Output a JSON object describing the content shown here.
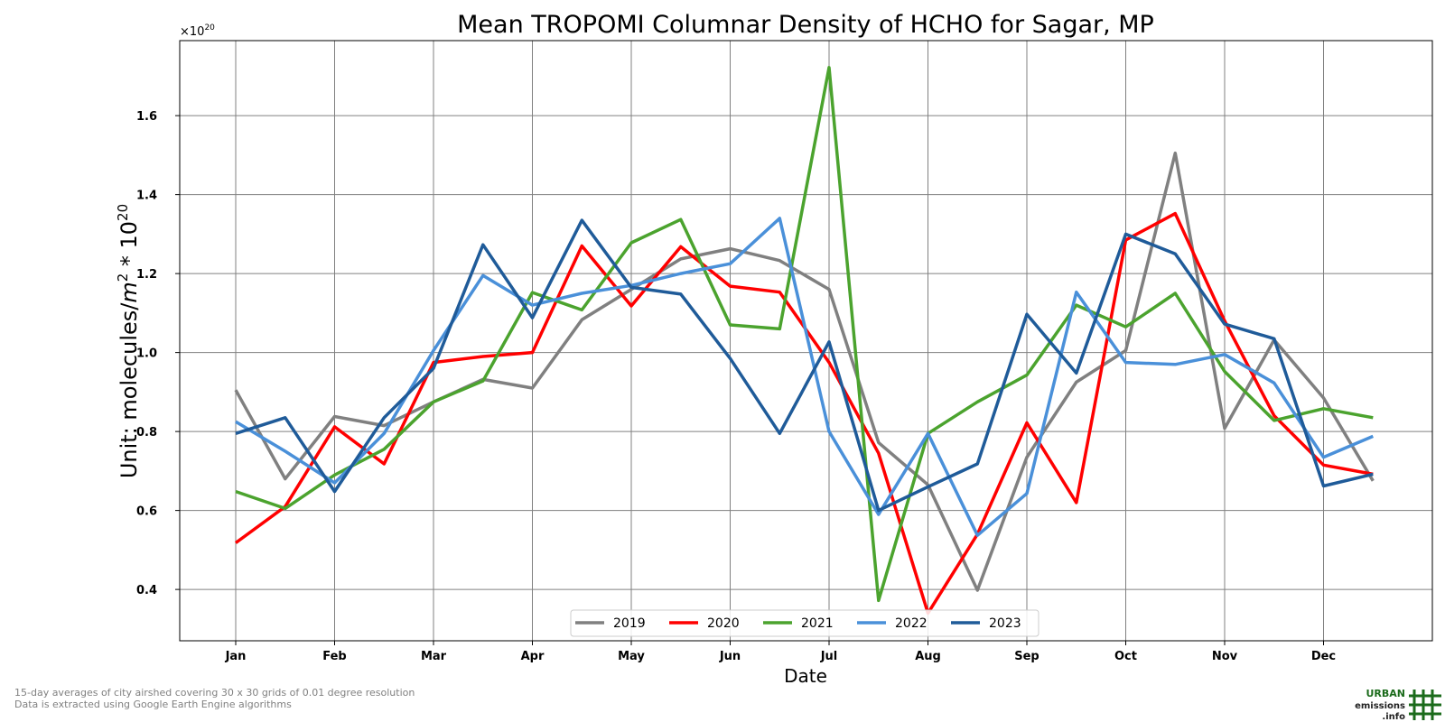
{
  "chart_data": {
    "type": "line",
    "title": "Mean TROPOMI Columnar Density of HCHO for Sagar, MP",
    "xlabel": "Date",
    "ylabel_prefix": "Unit: molecules/",
    "ylabel_m": "m",
    "ylabel_m_exp": "2",
    "ylabel_mid": " * 10",
    "ylabel_exp": "20",
    "offset_base": "×10",
    "offset_exp": "20",
    "x_tick_labels": [
      "Jan",
      "Feb",
      "Mar",
      "Apr",
      "May",
      "Jun",
      "Jul",
      "Aug",
      "Sep",
      "Oct",
      "Nov",
      "Dec"
    ],
    "x_period_labels": [
      "Jan",
      "Jan 16",
      "Feb",
      "Feb 16",
      "Mar",
      "Mar 16",
      "Apr",
      "Apr 16",
      "May",
      "May 16",
      "Jun",
      "Jun 16",
      "Jul",
      "Jul 16",
      "Aug",
      "Aug 16",
      "Sep",
      "Sep 16",
      "Oct",
      "Oct 16",
      "Nov",
      "Nov 16",
      "Dec",
      "Dec 16"
    ],
    "y_ticks": [
      0.4,
      0.6,
      0.8,
      1.0,
      1.2,
      1.4,
      1.6
    ],
    "y_tick_labels": [
      "0.4",
      "0.6",
      "0.8",
      "1.0",
      "1.2",
      "1.4",
      "1.6"
    ],
    "ylim": [
      0.27,
      1.79
    ],
    "grid": true,
    "legend_position": "bottom-center",
    "series": [
      {
        "name": "2019",
        "color": "#808080",
        "values": [
          0.905,
          0.68,
          0.838,
          0.815,
          0.875,
          0.932,
          0.91,
          1.083,
          1.16,
          1.237,
          1.263,
          1.233,
          1.16,
          0.772,
          0.665,
          0.398,
          0.735,
          0.925,
          1.005,
          1.505,
          0.808,
          1.032,
          0.885,
          0.675
        ]
      },
      {
        "name": "2020",
        "color": "#ff0000",
        "values": [
          0.518,
          0.61,
          0.812,
          0.718,
          0.975,
          0.99,
          1.0,
          1.27,
          1.118,
          1.268,
          1.168,
          1.153,
          0.975,
          0.745,
          0.34,
          0.54,
          0.822,
          0.62,
          1.285,
          1.352,
          1.08,
          0.84,
          0.715,
          0.692
        ]
      },
      {
        "name": "2021",
        "color": "#4ba32e",
        "values": [
          0.648,
          0.605,
          0.69,
          0.755,
          0.875,
          0.928,
          1.152,
          1.108,
          1.278,
          1.337,
          1.07,
          1.06,
          1.722,
          0.372,
          0.795,
          0.875,
          0.943,
          1.12,
          1.065,
          1.15,
          0.952,
          0.828,
          0.858,
          0.835
        ]
      },
      {
        "name": "2022",
        "color": "#4a90d9",
        "values": [
          0.825,
          0.75,
          0.67,
          0.795,
          1.005,
          1.195,
          1.12,
          1.15,
          1.17,
          1.2,
          1.225,
          1.34,
          0.8,
          0.59,
          0.795,
          0.537,
          0.643,
          1.153,
          0.975,
          0.97,
          0.995,
          0.923,
          0.735,
          0.788
        ]
      },
      {
        "name": "2023",
        "color": "#1f5b99",
        "values": [
          0.795,
          0.835,
          0.648,
          0.835,
          0.96,
          1.273,
          1.088,
          1.335,
          1.165,
          1.148,
          0.985,
          0.795,
          1.027,
          0.6,
          0.66,
          0.718,
          1.097,
          0.948,
          1.3,
          1.25,
          1.072,
          1.035,
          0.662,
          0.692
        ]
      }
    ]
  },
  "footer": {
    "note_line1": "15-day averages of city airshed covering 30 x 30 grids of 0.01 degree resolution",
    "note_line2": "Data is extracted using Google Earth Engine algorithms"
  },
  "logo": {
    "word1": "URBAN",
    "word2": "emissions",
    "word3": ".info",
    "color_green": "#1b6b1b",
    "color_dark": "#0e3d0e"
  }
}
